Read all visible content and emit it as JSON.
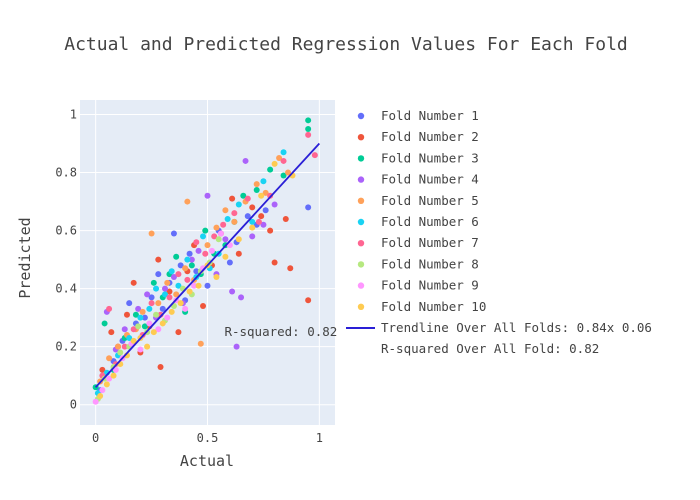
{
  "chart_data": {
    "type": "scatter",
    "title": "Actual and Predicted Regression Values For Each Fold",
    "xlabel": "Actual",
    "ylabel": "Predicted",
    "xlim": [
      -0.07,
      1.07
    ],
    "ylim": [
      -0.07,
      1.05
    ],
    "x_ticks": [
      0,
      0.5,
      1
    ],
    "x_tick_labels": [
      "0",
      "0.5",
      "1"
    ],
    "y_ticks": [
      0,
      0.2,
      0.4,
      0.6,
      0.8,
      1
    ],
    "y_tick_labels": [
      "0",
      "0.2",
      "0.4",
      "0.6",
      "0.8",
      "1"
    ],
    "grid": true,
    "legend_position": "right",
    "series": [
      {
        "name": "Fold Number 1",
        "color": "#636efa",
        "points": [
          [
            0.02,
            0.05
          ],
          [
            0.08,
            0.15
          ],
          [
            0.12,
            0.22
          ],
          [
            0.15,
            0.35
          ],
          [
            0.18,
            0.28
          ],
          [
            0.22,
            0.3
          ],
          [
            0.25,
            0.37
          ],
          [
            0.28,
            0.45
          ],
          [
            0.3,
            0.33
          ],
          [
            0.33,
            0.42
          ],
          [
            0.35,
            0.59
          ],
          [
            0.38,
            0.48
          ],
          [
            0.4,
            0.36
          ],
          [
            0.42,
            0.52
          ],
          [
            0.45,
            0.46
          ],
          [
            0.5,
            0.41
          ],
          [
            0.55,
            0.6
          ],
          [
            0.6,
            0.49
          ],
          [
            0.63,
            0.56
          ],
          [
            0.68,
            0.65
          ],
          [
            0.72,
            0.62
          ],
          [
            0.76,
            0.67
          ],
          [
            0.95,
            0.68
          ]
        ]
      },
      {
        "name": "Fold Number 2",
        "color": "#ef553b",
        "points": [
          [
            0.03,
            0.12
          ],
          [
            0.07,
            0.25
          ],
          [
            0.1,
            0.2
          ],
          [
            0.14,
            0.31
          ],
          [
            0.17,
            0.42
          ],
          [
            0.2,
            0.18
          ],
          [
            0.24,
            0.27
          ],
          [
            0.28,
            0.5
          ],
          [
            0.29,
            0.13
          ],
          [
            0.33,
            0.39
          ],
          [
            0.37,
            0.25
          ],
          [
            0.41,
            0.46
          ],
          [
            0.44,
            0.55
          ],
          [
            0.48,
            0.34
          ],
          [
            0.52,
            0.48
          ],
          [
            0.56,
            0.59
          ],
          [
            0.61,
            0.71
          ],
          [
            0.64,
            0.52
          ],
          [
            0.7,
            0.68
          ],
          [
            0.74,
            0.65
          ],
          [
            0.78,
            0.6
          ],
          [
            0.8,
            0.49
          ],
          [
            0.85,
            0.64
          ],
          [
            0.87,
            0.47
          ],
          [
            0.95,
            0.36
          ]
        ]
      },
      {
        "name": "Fold Number 3",
        "color": "#00cc96",
        "points": [
          [
            0.0,
            0.06
          ],
          [
            0.04,
            0.28
          ],
          [
            0.08,
            0.12
          ],
          [
            0.13,
            0.23
          ],
          [
            0.18,
            0.31
          ],
          [
            0.22,
            0.27
          ],
          [
            0.26,
            0.42
          ],
          [
            0.3,
            0.37
          ],
          [
            0.33,
            0.45
          ],
          [
            0.36,
            0.51
          ],
          [
            0.4,
            0.32
          ],
          [
            0.43,
            0.48
          ],
          [
            0.47,
            0.45
          ],
          [
            0.49,
            0.6
          ],
          [
            0.53,
            0.52
          ],
          [
            0.58,
            0.55
          ],
          [
            0.62,
            0.63
          ],
          [
            0.66,
            0.72
          ],
          [
            0.72,
            0.74
          ],
          [
            0.78,
            0.81
          ],
          [
            0.84,
            0.79
          ],
          [
            0.95,
            0.95
          ],
          [
            0.95,
            0.98
          ]
        ]
      },
      {
        "name": "Fold Number 4",
        "color": "#ab63fa",
        "points": [
          [
            0.05,
            0.32
          ],
          [
            0.09,
            0.19
          ],
          [
            0.13,
            0.26
          ],
          [
            0.19,
            0.33
          ],
          [
            0.23,
            0.38
          ],
          [
            0.27,
            0.3
          ],
          [
            0.31,
            0.4
          ],
          [
            0.35,
            0.44
          ],
          [
            0.39,
            0.35
          ],
          [
            0.43,
            0.5
          ],
          [
            0.46,
            0.53
          ],
          [
            0.5,
            0.72
          ],
          [
            0.54,
            0.45
          ],
          [
            0.58,
            0.57
          ],
          [
            0.61,
            0.39
          ],
          [
            0.63,
            0.2
          ],
          [
            0.65,
            0.37
          ],
          [
            0.67,
            0.84
          ],
          [
            0.7,
            0.58
          ],
          [
            0.75,
            0.62
          ],
          [
            0.8,
            0.69
          ]
        ]
      },
      {
        "name": "Fold Number 5",
        "color": "#ffa15a",
        "points": [
          [
            0.02,
            0.08
          ],
          [
            0.06,
            0.16
          ],
          [
            0.1,
            0.2
          ],
          [
            0.14,
            0.24
          ],
          [
            0.18,
            0.26
          ],
          [
            0.21,
            0.32
          ],
          [
            0.25,
            0.59
          ],
          [
            0.28,
            0.35
          ],
          [
            0.32,
            0.42
          ],
          [
            0.36,
            0.38
          ],
          [
            0.4,
            0.47
          ],
          [
            0.41,
            0.7
          ],
          [
            0.44,
            0.43
          ],
          [
            0.47,
            0.21
          ],
          [
            0.5,
            0.55
          ],
          [
            0.54,
            0.61
          ],
          [
            0.58,
            0.67
          ],
          [
            0.62,
            0.63
          ],
          [
            0.67,
            0.7
          ],
          [
            0.72,
            0.76
          ],
          [
            0.76,
            0.73
          ],
          [
            0.82,
            0.85
          ],
          [
            0.86,
            0.8
          ]
        ]
      },
      {
        "name": "Fold Number 6",
        "color": "#19d3f3",
        "points": [
          [
            0.01,
            0.04
          ],
          [
            0.05,
            0.11
          ],
          [
            0.1,
            0.17
          ],
          [
            0.15,
            0.23
          ],
          [
            0.2,
            0.3
          ],
          [
            0.24,
            0.33
          ],
          [
            0.27,
            0.4
          ],
          [
            0.31,
            0.38
          ],
          [
            0.34,
            0.46
          ],
          [
            0.37,
            0.41
          ],
          [
            0.41,
            0.5
          ],
          [
            0.45,
            0.44
          ],
          [
            0.48,
            0.58
          ],
          [
            0.51,
            0.47
          ],
          [
            0.55,
            0.52
          ],
          [
            0.59,
            0.64
          ],
          [
            0.64,
            0.69
          ],
          [
            0.7,
            0.63
          ],
          [
            0.75,
            0.77
          ],
          [
            0.84,
            0.87
          ]
        ]
      },
      {
        "name": "Fold Number 7",
        "color": "#ff6692",
        "points": [
          [
            0.03,
            0.1
          ],
          [
            0.06,
            0.33
          ],
          [
            0.09,
            0.14
          ],
          [
            0.13,
            0.2
          ],
          [
            0.17,
            0.26
          ],
          [
            0.21,
            0.24
          ],
          [
            0.25,
            0.35
          ],
          [
            0.29,
            0.31
          ],
          [
            0.33,
            0.37
          ],
          [
            0.37,
            0.45
          ],
          [
            0.41,
            0.43
          ],
          [
            0.45,
            0.56
          ],
          [
            0.49,
            0.52
          ],
          [
            0.53,
            0.58
          ],
          [
            0.57,
            0.62
          ],
          [
            0.62,
            0.66
          ],
          [
            0.68,
            0.71
          ],
          [
            0.73,
            0.63
          ],
          [
            0.78,
            0.72
          ],
          [
            0.84,
            0.84
          ],
          [
            0.95,
            0.93
          ],
          [
            0.98,
            0.86
          ]
        ]
      },
      {
        "name": "Fold Number 8",
        "color": "#b6e880",
        "points": [
          [
            0.01,
            0.02
          ],
          [
            0.04,
            0.09
          ],
          [
            0.08,
            0.13
          ],
          [
            0.11,
            0.18
          ],
          [
            0.15,
            0.2
          ],
          [
            0.19,
            0.27
          ],
          [
            0.23,
            0.25
          ],
          [
            0.27,
            0.31
          ],
          [
            0.31,
            0.29
          ],
          [
            0.35,
            0.34
          ],
          [
            0.39,
            0.4
          ],
          [
            0.43,
            0.38
          ],
          [
            0.47,
            0.46
          ],
          [
            0.51,
            0.49
          ],
          [
            0.55,
            0.57
          ]
        ]
      },
      {
        "name": "Fold Number 9",
        "color": "#ff97ff",
        "points": [
          [
            0.0,
            0.01
          ],
          [
            0.03,
            0.05
          ],
          [
            0.06,
            0.09
          ],
          [
            0.09,
            0.12
          ],
          [
            0.12,
            0.16
          ],
          [
            0.16,
            0.21
          ],
          [
            0.2,
            0.19
          ],
          [
            0.24,
            0.28
          ],
          [
            0.28,
            0.26
          ],
          [
            0.32,
            0.3
          ],
          [
            0.36,
            0.36
          ],
          [
            0.4,
            0.33
          ],
          [
            0.44,
            0.41
          ],
          [
            0.48,
            0.47
          ],
          [
            0.52,
            0.53
          ],
          [
            0.56,
            0.59
          ],
          [
            0.6,
            0.55
          ]
        ]
      },
      {
        "name": "Fold Number 10",
        "color": "#fecb52",
        "points": [
          [
            0.02,
            0.03
          ],
          [
            0.05,
            0.07
          ],
          [
            0.08,
            0.1
          ],
          [
            0.11,
            0.14
          ],
          [
            0.14,
            0.17
          ],
          [
            0.17,
            0.22
          ],
          [
            0.2,
            0.23
          ],
          [
            0.23,
            0.2
          ],
          [
            0.26,
            0.25
          ],
          [
            0.3,
            0.28
          ],
          [
            0.34,
            0.32
          ],
          [
            0.38,
            0.35
          ],
          [
            0.42,
            0.39
          ],
          [
            0.46,
            0.41
          ],
          [
            0.5,
            0.48
          ],
          [
            0.54,
            0.44
          ],
          [
            0.58,
            0.51
          ],
          [
            0.64,
            0.57
          ],
          [
            0.7,
            0.61
          ],
          [
            0.74,
            0.72
          ],
          [
            0.8,
            0.83
          ],
          [
            0.88,
            0.79
          ]
        ]
      }
    ],
    "trendline": {
      "name": "Trendline Over All Folds: 0.84x 0.06",
      "color": "#2a1fd6",
      "x": [
        0,
        1
      ],
      "y": [
        0.06,
        0.9
      ]
    },
    "annotations": [
      {
        "text": "R-squared: 0.82",
        "x": 1.0,
        "y": 0.25
      },
      {
        "text": "R-squared Over All Fold: 0.82"
      }
    ]
  }
}
